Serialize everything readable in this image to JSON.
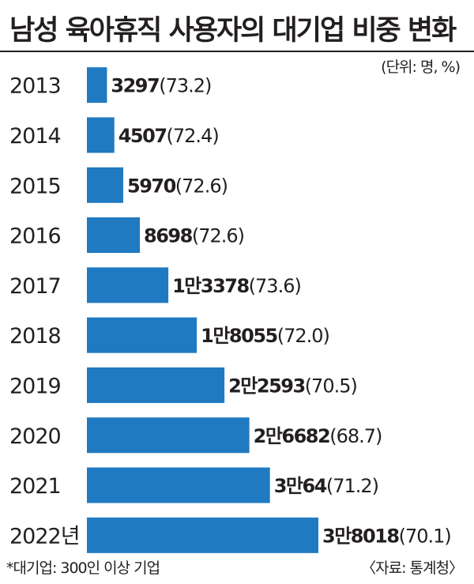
{
  "title": "남성 육아휴직 사용자의 대기업 비중 변화",
  "unit": "(단위: 명, %)",
  "footnote": "*대기업: 300인 이상 기업",
  "source": "〈자료: 통계청〉",
  "bar_color": "#1f7ac2",
  "chart_data": {
    "type": "bar",
    "orientation": "horizontal",
    "categories": [
      "2013",
      "2014",
      "2015",
      "2016",
      "2017",
      "2018",
      "2019",
      "2020",
      "2021",
      "2022년"
    ],
    "values": [
      3297,
      4507,
      5970,
      8698,
      13378,
      18055,
      22593,
      26682,
      30064,
      38018
    ],
    "value_labels": [
      "3297",
      "4507",
      "5970",
      "8698",
      "1만3378",
      "1만8055",
      "2만2593",
      "2만6682",
      "3만64",
      "3만8018"
    ],
    "percent_labels": [
      "(73.2)",
      "(72.4)",
      "(72.6)",
      "(72.6)",
      "(73.6)",
      "(72.0)",
      "(70.5)",
      "(68.7)",
      "(71.2)",
      "(70.1)"
    ],
    "percent_values": [
      73.2,
      72.4,
      72.6,
      72.6,
      73.6,
      72.0,
      70.5,
      68.7,
      71.2,
      70.1
    ],
    "xlim": [
      0,
      38018
    ],
    "grid": false,
    "legend": "none"
  }
}
